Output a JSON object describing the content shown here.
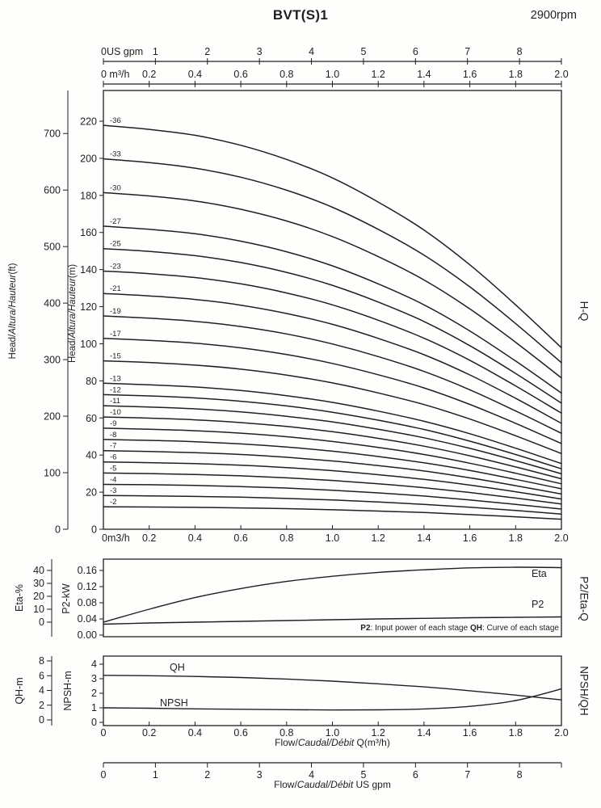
{
  "header": {
    "title": "BVT(S)1",
    "rpm": "2900rpm"
  },
  "labels": {
    "head_prefix": "Head/",
    "head_italic": "Altura/Hauteur",
    "head_ft_suffix": "(ft)",
    "head_m_suffix": "(m)",
    "side_hq": "H-Q",
    "side_p2eta": "P2/Eta-Q",
    "side_npshqh": "NPSH/QH",
    "eta_axis": "Eta-%",
    "p2_axis": "P2-kW",
    "qh_axis": "QH-m",
    "npsh_axis": "NPSH-m",
    "flow_prefix": "Flow/",
    "flow_italic": "Caudal/Débit",
    "flow_m3h_suffix": " Q(m³/h)",
    "flow_gpm_suffix": " US gpm",
    "note_p2_term": "P2",
    "note_p2_text": ": Input power of each stage ",
    "note_qh_term": "QH",
    "note_qh_text": ": Curve of each stage"
  },
  "chart_data": {
    "type": "line",
    "title": "BVT(S)1 multistage pump performance curves at 2900rpm",
    "x_m3h": [
      0,
      0.2,
      0.4,
      0.6,
      0.8,
      1.0,
      1.2,
      1.4,
      1.6,
      1.8,
      2.0
    ],
    "axes": {
      "top_gpm_values": [
        0,
        1,
        2,
        3,
        4,
        5,
        6,
        7,
        8
      ],
      "top_gpm_labels": [
        "0US gpm",
        "1",
        "2",
        "3",
        "4",
        "5",
        "6",
        "7",
        "8"
      ],
      "top_m3h_labels": [
        "0 m³/h",
        "0.2",
        "0.4",
        "0.6",
        "0.8",
        "1.0",
        "1.2",
        "1.4",
        "1.6",
        "1.8",
        "2.0"
      ],
      "head_ft": [
        0,
        100,
        200,
        300,
        400,
        500,
        600,
        700
      ],
      "head_m": [
        0,
        20,
        40,
        60,
        80,
        100,
        120,
        140,
        160,
        180,
        200,
        220
      ],
      "main_x_labels": [
        "0m3/h",
        "0.2",
        "0.4",
        "0.6",
        "0.8",
        "1.0",
        "1.2",
        "1.4",
        "1.6",
        "1.8",
        "2.0"
      ],
      "eta_ticks": [
        0,
        10,
        20,
        30,
        40
      ],
      "p2_ticks": [
        "0.00",
        "0.04",
        "0.08",
        "0.12",
        "0.16"
      ],
      "qh_ticks": [
        0,
        2,
        4,
        6,
        8
      ],
      "npsh_ticks": [
        0,
        1,
        2,
        3,
        4
      ],
      "bot_x_labels": [
        "0",
        "0.2",
        "0.4",
        "0.6",
        "0.8",
        "1.0",
        "1.2",
        "1.4",
        "1.6",
        "1.8",
        "2.0"
      ],
      "bot_gpm_values": [
        0,
        1,
        2,
        3,
        4,
        5,
        6,
        7,
        8
      ],
      "bot_gpm_labels": [
        "0",
        "1",
        "2",
        "3",
        "4",
        "5",
        "6",
        "7",
        "8"
      ]
    },
    "hq": {
      "ylabel_outer": "Head ft",
      "ylabel_inner": "Head m",
      "series": [
        {
          "name": "-36",
          "values": [
            217.8,
            215.6,
            212.4,
            207.0,
            199.4,
            189.4,
            176.4,
            161.3,
            142.6,
            121.0,
            97.9
          ]
        },
        {
          "name": "-33",
          "values": [
            199.7,
            197.7,
            194.7,
            189.8,
            182.8,
            173.6,
            161.7,
            147.8,
            130.7,
            110.9,
            89.8
          ]
        },
        {
          "name": "-30",
          "values": [
            181.5,
            179.7,
            177.0,
            172.5,
            166.2,
            157.8,
            147.0,
            134.4,
            118.8,
            100.8,
            81.6
          ]
        },
        {
          "name": "-27",
          "values": [
            163.4,
            161.7,
            159.3,
            155.3,
            149.6,
            142.0,
            132.3,
            121.0,
            106.9,
            90.7,
            73.4
          ]
        },
        {
          "name": "-25",
          "values": [
            151.3,
            149.8,
            147.5,
            143.8,
            138.5,
            131.5,
            122.5,
            112.0,
            99.0,
            84.0,
            68.0
          ]
        },
        {
          "name": "-23",
          "values": [
            139.2,
            137.8,
            135.7,
            132.3,
            127.4,
            121.0,
            112.7,
            103.0,
            91.1,
            77.3,
            62.6
          ]
        },
        {
          "name": "-21",
          "values": [
            127.1,
            125.8,
            123.9,
            120.8,
            116.3,
            110.5,
            102.9,
            94.1,
            83.2,
            70.6,
            57.1
          ]
        },
        {
          "name": "-19",
          "values": [
            115.0,
            113.8,
            112.1,
            109.3,
            105.3,
            99.9,
            93.1,
            85.1,
            75.2,
            63.8,
            51.7
          ]
        },
        {
          "name": "-17",
          "values": [
            102.9,
            101.8,
            100.3,
            97.8,
            94.2,
            89.4,
            83.3,
            76.2,
            67.3,
            57.1,
            46.2
          ]
        },
        {
          "name": "-15",
          "values": [
            90.8,
            89.9,
            88.5,
            86.3,
            83.1,
            78.9,
            73.5,
            67.2,
            59.4,
            50.4,
            40.8
          ]
        },
        {
          "name": "-13",
          "values": [
            78.7,
            77.9,
            76.7,
            74.8,
            72.0,
            68.4,
            63.7,
            58.2,
            51.5,
            43.7,
            35.4
          ]
        },
        {
          "name": "-12",
          "values": [
            72.6,
            71.9,
            70.8,
            69.0,
            66.5,
            63.1,
            58.8,
            53.8,
            47.5,
            40.3,
            32.6
          ]
        },
        {
          "name": "-11",
          "values": [
            66.6,
            65.9,
            64.9,
            63.3,
            60.9,
            57.9,
            53.9,
            49.3,
            43.6,
            37.0,
            29.9
          ]
        },
        {
          "name": "-10",
          "values": [
            60.5,
            59.9,
            59.0,
            57.5,
            55.4,
            52.6,
            49.0,
            44.8,
            39.6,
            33.6,
            27.2
          ]
        },
        {
          "name": "-9",
          "values": [
            54.5,
            53.9,
            53.1,
            51.8,
            49.9,
            47.3,
            44.1,
            40.3,
            35.6,
            30.2,
            24.5
          ]
        },
        {
          "name": "-8",
          "values": [
            48.4,
            47.9,
            47.2,
            46.0,
            44.3,
            42.1,
            39.2,
            35.8,
            31.7,
            26.9,
            21.8
          ]
        },
        {
          "name": "-7",
          "values": [
            42.4,
            41.9,
            41.3,
            40.3,
            38.8,
            36.8,
            34.3,
            31.4,
            27.7,
            23.5,
            19.0
          ]
        },
        {
          "name": "-6",
          "values": [
            36.3,
            35.9,
            35.4,
            34.5,
            33.2,
            31.6,
            29.4,
            26.9,
            23.8,
            20.2,
            16.3
          ]
        },
        {
          "name": "-5",
          "values": [
            30.3,
            30.0,
            29.5,
            28.8,
            27.7,
            26.3,
            24.5,
            22.4,
            19.8,
            16.8,
            13.6
          ]
        },
        {
          "name": "-4",
          "values": [
            24.2,
            24.0,
            23.6,
            23.0,
            22.2,
            21.0,
            19.6,
            17.9,
            15.8,
            13.4,
            10.9
          ]
        },
        {
          "name": "-3",
          "values": [
            18.2,
            18.0,
            17.7,
            17.3,
            16.6,
            15.8,
            14.7,
            13.4,
            11.9,
            10.1,
            8.2
          ]
        },
        {
          "name": "-2",
          "values": [
            12.1,
            12.0,
            11.8,
            11.5,
            11.1,
            10.5,
            9.8,
            9.0,
            7.9,
            6.7,
            5.4
          ]
        }
      ]
    },
    "eta_p2": {
      "eta_label": "Eta",
      "p2_label": "P2",
      "eta": [
        0,
        10,
        19,
        26,
        31.5,
        35.5,
        38.5,
        40.5,
        42,
        42.5,
        42.2
      ],
      "p2": [
        0.027,
        0.03,
        0.032,
        0.034,
        0.036,
        0.038,
        0.04,
        0.0415,
        0.043,
        0.044,
        0.045
      ]
    },
    "npsh_qh": {
      "qh_label": "QH",
      "npsh_label": "NPSH",
      "qh": [
        6.05,
        5.99,
        5.9,
        5.75,
        5.54,
        5.26,
        4.9,
        4.48,
        3.96,
        3.36,
        2.72
      ],
      "npsh": [
        1.0,
        0.97,
        0.93,
        0.9,
        0.87,
        0.85,
        0.86,
        0.92,
        1.1,
        1.5,
        2.3
      ]
    }
  }
}
